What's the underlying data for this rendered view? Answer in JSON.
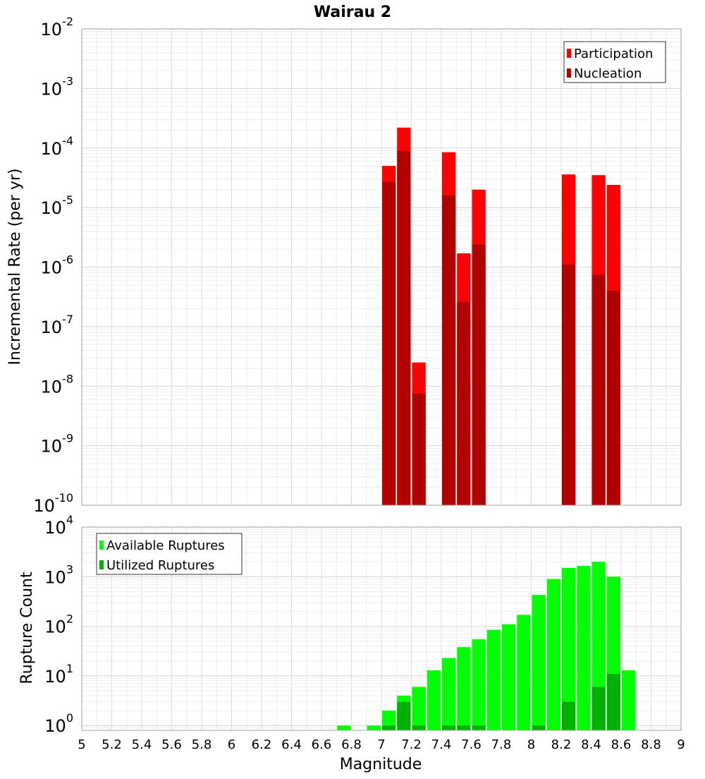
{
  "chart_data": [
    {
      "type": "bar",
      "title": "Wairau 2",
      "xlabel": "",
      "ylabel": "Incremental Rate (per yr)",
      "y_scale": "log",
      "ylim": [
        1e-10,
        0.01
      ],
      "xlim": [
        5,
        9
      ],
      "grid": true,
      "legend_position": "top-right",
      "y_ticks": [
        {
          "base": "10",
          "exp": "-10",
          "value": 1e-10
        },
        {
          "base": "10",
          "exp": "-9",
          "value": 1e-09
        },
        {
          "base": "10",
          "exp": "-8",
          "value": 1e-08
        },
        {
          "base": "10",
          "exp": "-7",
          "value": 1e-07
        },
        {
          "base": "10",
          "exp": "-6",
          "value": 1e-06
        },
        {
          "base": "10",
          "exp": "-5",
          "value": 1e-05
        },
        {
          "base": "10",
          "exp": "-4",
          "value": 0.0001
        },
        {
          "base": "10",
          "exp": "-3",
          "value": 0.001
        },
        {
          "base": "10",
          "exp": "-2",
          "value": 0.01
        }
      ],
      "series": [
        {
          "name": "Participation",
          "color": "#ff0000",
          "points": [
            {
              "x": 7.05,
              "y": 5e-05
            },
            {
              "x": 7.15,
              "y": 0.00022
            },
            {
              "x": 7.25,
              "y": 2.5e-08
            },
            {
              "x": 7.45,
              "y": 8.5e-05
            },
            {
              "x": 7.55,
              "y": 1.7e-06
            },
            {
              "x": 7.65,
              "y": 2e-05
            },
            {
              "x": 8.25,
              "y": 3.6e-05
            },
            {
              "x": 8.45,
              "y": 3.5e-05
            },
            {
              "x": 8.55,
              "y": 2.4e-05
            }
          ]
        },
        {
          "name": "Nucleation",
          "color": "#b00000",
          "points": [
            {
              "x": 7.05,
              "y": 2.7e-05
            },
            {
              "x": 7.15,
              "y": 9e-05
            },
            {
              "x": 7.25,
              "y": 7.5e-09
            },
            {
              "x": 7.45,
              "y": 1.6e-05
            },
            {
              "x": 7.55,
              "y": 2.6e-07
            },
            {
              "x": 7.65,
              "y": 2.4e-06
            },
            {
              "x": 8.25,
              "y": 1.1e-06
            },
            {
              "x": 8.45,
              "y": 7.5e-07
            },
            {
              "x": 8.55,
              "y": 4e-07
            }
          ]
        }
      ]
    },
    {
      "type": "bar",
      "title": "",
      "xlabel": "Magnitude",
      "ylabel": "Rupture Count",
      "y_scale": "log",
      "ylim": [
        0.8,
        10000
      ],
      "xlim": [
        5,
        9
      ],
      "grid": true,
      "legend_position": "top-left",
      "x_ticks": [
        "5",
        "5.2",
        "5.4",
        "5.6",
        "5.8",
        "6",
        "6.2",
        "6.4",
        "6.6",
        "6.8",
        "7",
        "7.2",
        "7.4",
        "7.6",
        "7.8",
        "8",
        "8.2",
        "8.4",
        "8.6",
        "8.8",
        "9"
      ],
      "y_ticks": [
        {
          "base": "10",
          "exp": "0",
          "value": 1
        },
        {
          "base": "10",
          "exp": "1",
          "value": 10
        },
        {
          "base": "10",
          "exp": "2",
          "value": 100
        },
        {
          "base": "10",
          "exp": "3",
          "value": 1000
        },
        {
          "base": "10",
          "exp": "4",
          "value": 10000
        }
      ],
      "series": [
        {
          "name": "Available Ruptures",
          "color": "#00ff00",
          "points": [
            {
              "x": 6.75,
              "y": 1
            },
            {
              "x": 6.95,
              "y": 1
            },
            {
              "x": 7.05,
              "y": 2
            },
            {
              "x": 7.15,
              "y": 4
            },
            {
              "x": 7.25,
              "y": 6
            },
            {
              "x": 7.35,
              "y": 13
            },
            {
              "x": 7.45,
              "y": 23
            },
            {
              "x": 7.55,
              "y": 38
            },
            {
              "x": 7.65,
              "y": 55
            },
            {
              "x": 7.75,
              "y": 85
            },
            {
              "x": 7.85,
              "y": 110
            },
            {
              "x": 7.95,
              "y": 170
            },
            {
              "x": 8.05,
              "y": 430
            },
            {
              "x": 8.15,
              "y": 900
            },
            {
              "x": 8.25,
              "y": 1500
            },
            {
              "x": 8.35,
              "y": 1650
            },
            {
              "x": 8.45,
              "y": 2000
            },
            {
              "x": 8.55,
              "y": 1000
            },
            {
              "x": 8.65,
              "y": 13
            }
          ]
        },
        {
          "name": "Utilized Ruptures",
          "color": "#00b000",
          "points": [
            {
              "x": 7.05,
              "y": 1
            },
            {
              "x": 7.15,
              "y": 3
            },
            {
              "x": 7.25,
              "y": 1
            },
            {
              "x": 7.45,
              "y": 1
            },
            {
              "x": 7.55,
              "y": 1
            },
            {
              "x": 7.65,
              "y": 1
            },
            {
              "x": 8.05,
              "y": 1
            },
            {
              "x": 8.25,
              "y": 3
            },
            {
              "x": 8.45,
              "y": 6
            },
            {
              "x": 8.55,
              "y": 11
            }
          ]
        }
      ]
    }
  ]
}
